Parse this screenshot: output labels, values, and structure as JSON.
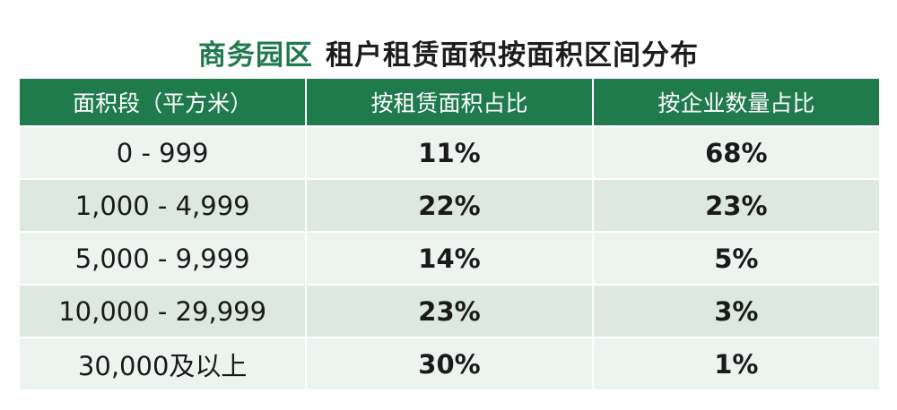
{
  "header": {
    "title_highlight": "商务园区",
    "title": "租户租赁面积按面积区间分布"
  },
  "table": {
    "columns": [
      "面积段（平方米）",
      "按租赁面积占比",
      "按企业数量占比"
    ],
    "rows": [
      [
        "0 - 999",
        "11%",
        "68%"
      ],
      [
        "1,000 - 4,999",
        "22%",
        "23%"
      ],
      [
        "5,000 - 9,999",
        "14%",
        "5%"
      ],
      [
        "10,000 - 29,999",
        "23%",
        "3%"
      ],
      [
        "30,000及以上",
        "30%",
        "1%"
      ]
    ]
  }
}
